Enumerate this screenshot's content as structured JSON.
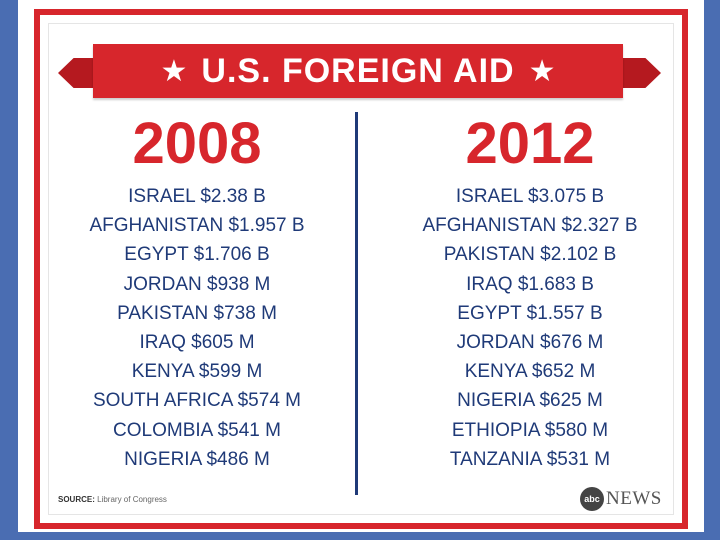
{
  "banner": {
    "title": "U.S. FOREIGN AID",
    "star": "★"
  },
  "columns": [
    {
      "year": "2008",
      "entries": [
        "ISRAEL $2.38 B",
        "AFGHANISTAN $1.957 B",
        "EGYPT $1.706 B",
        "JORDAN $938 M",
        "PAKISTAN $738 M",
        "IRAQ $605 M",
        "KENYA $599 M",
        "SOUTH AFRICA $574 M",
        "COLOMBIA $541 M",
        "NIGERIA $486 M"
      ]
    },
    {
      "year": "2012",
      "entries": [
        "ISRAEL $3.075 B",
        "AFGHANISTAN $2.327 B",
        "PAKISTAN $2.102 B",
        "IRAQ $1.683 B",
        "EGYPT $1.557 B",
        "JORDAN $676 M",
        "KENYA $652 M",
        "NIGERIA $625 M",
        "ETHIOPIA $580 M",
        "TANZANIA $531 M"
      ]
    }
  ],
  "source": {
    "label": "SOURCE:",
    "text": "Library of Congress"
  },
  "brand": {
    "logo": "abc",
    "name": "NEWS"
  },
  "colors": {
    "red": "#d7262c",
    "navy": "#1f3a78",
    "blue_band": "#4a6db2"
  }
}
